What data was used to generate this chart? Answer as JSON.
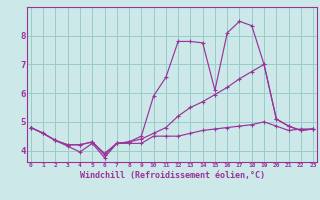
{
  "xlabel": "Windchill (Refroidissement éolien,°C)",
  "background_color": "#cce8e8",
  "grid_color": "#99cccc",
  "line_color": "#993399",
  "spine_color": "#993399",
  "x_ticks": [
    0,
    1,
    2,
    3,
    4,
    5,
    6,
    7,
    8,
    9,
    10,
    11,
    12,
    13,
    14,
    15,
    16,
    17,
    18,
    19,
    20,
    21,
    22,
    23
  ],
  "ylim": [
    3.6,
    9.0
  ],
  "xlim": [
    -0.3,
    23.3
  ],
  "yticks": [
    4,
    5,
    6,
    7,
    8
  ],
  "line1_x": [
    0,
    1,
    2,
    3,
    4,
    5,
    6,
    7,
    8,
    9,
    10,
    11,
    12,
    13,
    14,
    15,
    16,
    17,
    18,
    19,
    20,
    21,
    22,
    23
  ],
  "line1_y": [
    4.8,
    4.6,
    4.35,
    4.2,
    4.2,
    4.3,
    3.85,
    4.25,
    4.25,
    4.25,
    4.5,
    4.5,
    4.5,
    4.6,
    4.7,
    4.75,
    4.8,
    4.85,
    4.9,
    5.0,
    4.85,
    4.7,
    4.75,
    4.75
  ],
  "line2_x": [
    0,
    1,
    2,
    3,
    4,
    5,
    6,
    7,
    8,
    9,
    10,
    11,
    12,
    13,
    14,
    15,
    16,
    17,
    18,
    19,
    20,
    21,
    22,
    23
  ],
  "line2_y": [
    4.8,
    4.6,
    4.35,
    4.15,
    3.95,
    4.25,
    3.75,
    4.25,
    4.3,
    4.5,
    5.9,
    6.55,
    7.8,
    7.8,
    7.75,
    6.1,
    8.1,
    8.5,
    8.35,
    7.0,
    5.1,
    4.85,
    4.7,
    4.75
  ],
  "line3_x": [
    0,
    1,
    2,
    3,
    4,
    5,
    6,
    7,
    8,
    9,
    10,
    11,
    12,
    13,
    14,
    15,
    16,
    17,
    18,
    19,
    20,
    21,
    22,
    23
  ],
  "line3_y": [
    4.8,
    4.6,
    4.35,
    4.2,
    4.2,
    4.3,
    3.9,
    4.25,
    4.3,
    4.4,
    4.6,
    4.8,
    5.2,
    5.5,
    5.7,
    5.95,
    6.2,
    6.5,
    6.75,
    7.0,
    5.1,
    4.85,
    4.7,
    4.75
  ]
}
